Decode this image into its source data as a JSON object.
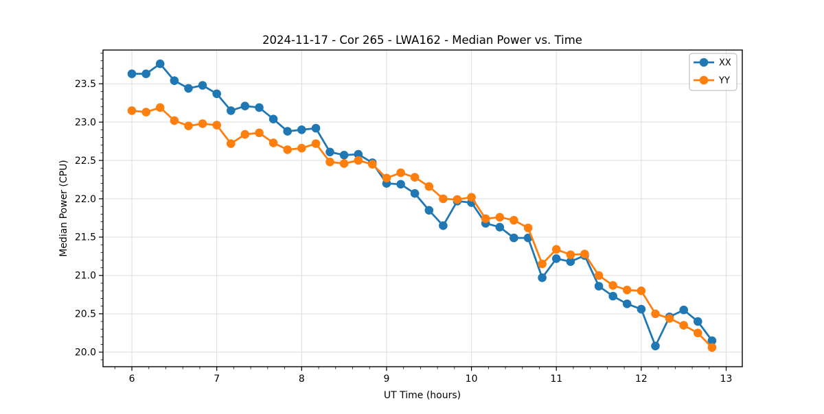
{
  "figure": {
    "title": "2024-11-17 - Cor 265 - LWA162 - Median Power vs. Time"
  },
  "chart_data": {
    "type": "line",
    "title": "2024-11-17 - Cor 265 - LWA162 - Median Power vs. Time",
    "xlabel": "UT Time (hours)",
    "ylabel": "Median Power (CPU)",
    "xlim": [
      5.66,
      13.19
    ],
    "ylim": [
      19.81,
      23.94
    ],
    "xticks": [
      6,
      7,
      8,
      9,
      10,
      11,
      12,
      13
    ],
    "xtick_labels": [
      "6",
      "7",
      "8",
      "9",
      "10",
      "11",
      "12",
      "13"
    ],
    "yticks": [
      20.0,
      20.5,
      21.0,
      21.5,
      22.0,
      22.5,
      23.0,
      23.5
    ],
    "ytick_labels": [
      "20.0",
      "20.5",
      "21.0",
      "21.5",
      "22.0",
      "22.5",
      "23.0",
      "23.5"
    ],
    "minor_x_step": 0.2,
    "minor_y_step": 0.1,
    "grid": "major",
    "grid_color": "#dcdcdc",
    "axis_color": "#000000",
    "background": "#ffffff",
    "legend_position": "upper right",
    "x": [
      6,
      6.167,
      6.333,
      6.5,
      6.667,
      6.833,
      7,
      7.167,
      7.333,
      7.5,
      7.667,
      7.833,
      8,
      8.167,
      8.333,
      8.5,
      8.667,
      8.833,
      9,
      9.167,
      9.333,
      9.5,
      9.667,
      9.833,
      10,
      10.167,
      10.333,
      10.5,
      10.667,
      10.833,
      11,
      11.167,
      11.333,
      11.5,
      11.667,
      11.833,
      12,
      12.167,
      12.333,
      12.5,
      12.667,
      12.833
    ],
    "series": [
      {
        "name": "XX",
        "color": "#1f77b4",
        "values": [
          23.63,
          23.63,
          23.76,
          23.54,
          23.44,
          23.48,
          23.37,
          23.15,
          23.21,
          23.19,
          23.04,
          22.88,
          22.9,
          22.92,
          22.61,
          22.57,
          22.58,
          22.47,
          22.2,
          22.19,
          22.07,
          21.85,
          21.65,
          21.97,
          21.95,
          21.68,
          21.63,
          21.49,
          21.49,
          20.97,
          21.22,
          21.18,
          21.26,
          20.86,
          20.73,
          20.63,
          20.56,
          20.08,
          20.46,
          20.55,
          20.4,
          20.15
        ]
      },
      {
        "name": "YY",
        "color": "#ff7f0e",
        "values": [
          23.15,
          23.13,
          23.19,
          23.02,
          22.95,
          22.98,
          22.96,
          22.72,
          22.84,
          22.86,
          22.73,
          22.64,
          22.66,
          22.72,
          22.48,
          22.46,
          22.5,
          22.45,
          22.27,
          22.34,
          22.28,
          22.16,
          22.0,
          21.99,
          22.02,
          21.74,
          21.76,
          21.72,
          21.62,
          21.15,
          21.34,
          21.27,
          21.28,
          21.0,
          20.87,
          20.81,
          20.8,
          20.5,
          20.44,
          20.35,
          20.25,
          20.06
        ]
      }
    ]
  }
}
